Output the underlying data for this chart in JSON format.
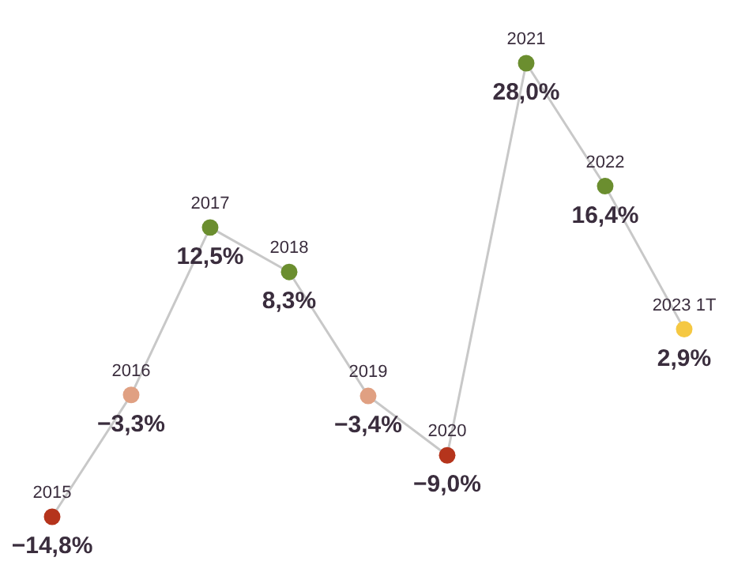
{
  "chart_data": {
    "type": "line",
    "categories": [
      "2015",
      "2016",
      "2017",
      "2018",
      "2019",
      "2020",
      "2021",
      "2022",
      "2023 1T"
    ],
    "series": [
      {
        "color": "#c8c8c8",
        "values": [
          -14.8,
          -3.3,
          12.5,
          8.3,
          -3.4,
          -9.0,
          28.0,
          16.4,
          2.9
        ],
        "colors": [
          "#b5341c",
          "#e0a082",
          "#6b8e2f",
          "#6b8e2f",
          "#e0a082",
          "#b5341c",
          "#6b8e2f",
          "#6b8e2f",
          "#f5c842"
        ],
        "value_labels": [
          "−14,8%",
          "−3,3%",
          "12,5%",
          "8,3%",
          "−3,4%",
          "−9,0%",
          "28,0%",
          "16,4%",
          "2,9%"
        ]
      }
    ],
    "marker": "circle"
  }
}
